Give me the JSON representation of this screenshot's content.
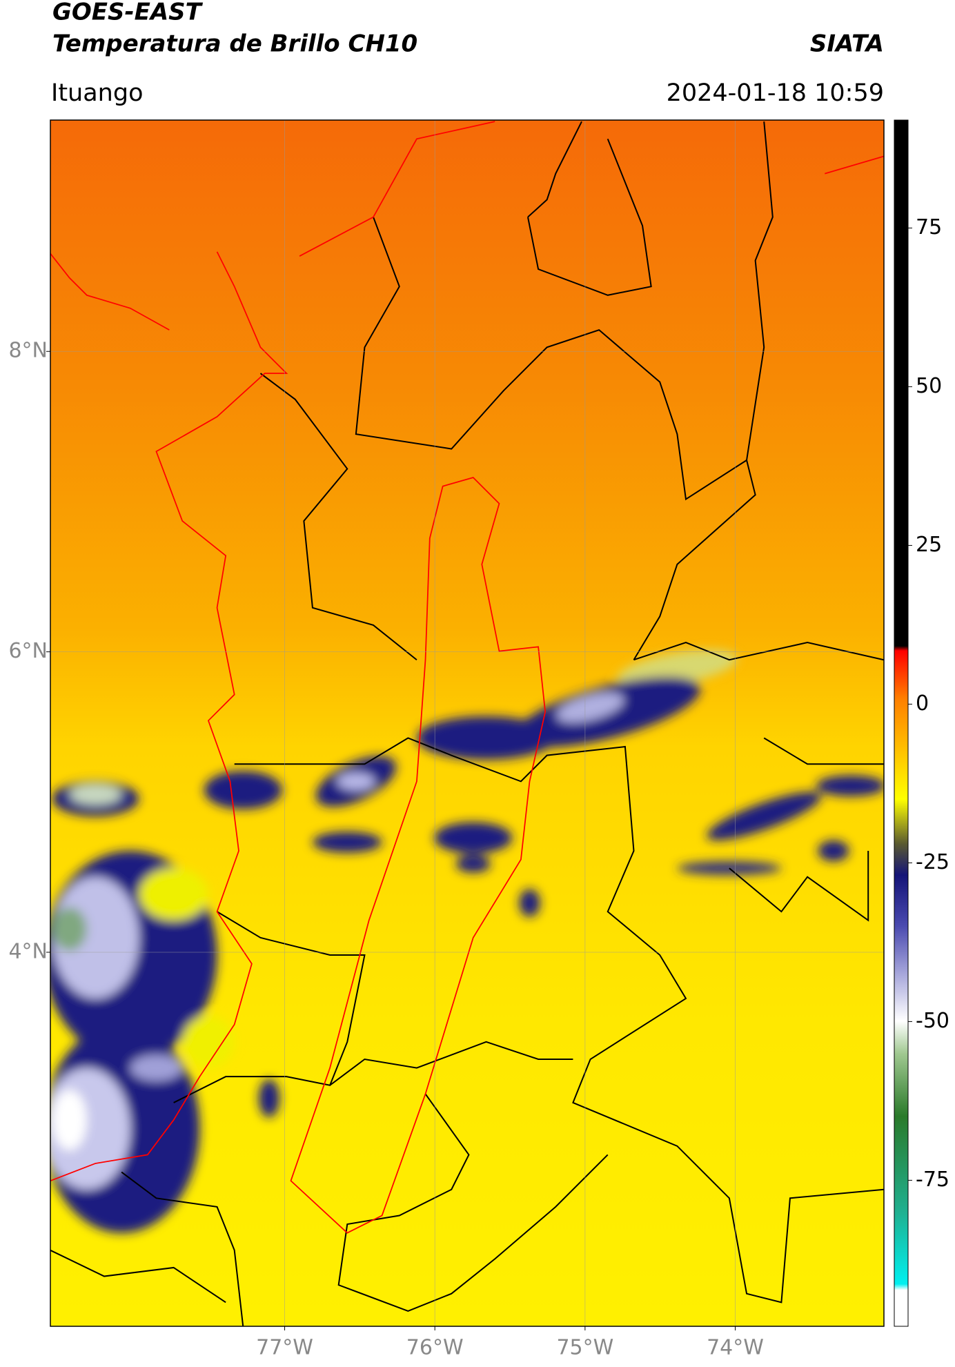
{
  "chart_data": {
    "type": "map",
    "title": "GOES-EAST",
    "subtitle": "Temperatura de Brillo CH10",
    "source": "SIATA",
    "region": "Ituango",
    "timestamp": "2024-01-18 10:59",
    "xlim": [
      -78.56,
      -73.01
    ],
    "ylim": [
      1.51,
      9.54
    ],
    "xticks": [
      {
        "value": -77,
        "label": "77°W"
      },
      {
        "value": -76,
        "label": "76°W"
      },
      {
        "value": -75,
        "label": "75°W"
      },
      {
        "value": -74,
        "label": "74°W"
      }
    ],
    "yticks": [
      {
        "value": 8,
        "label": "8°N"
      },
      {
        "value": 6,
        "label": "6°N"
      },
      {
        "value": 4,
        "label": "4°N"
      }
    ],
    "grid": true,
    "colorbar": {
      "lim": [
        -98,
        92
      ],
      "ticks": [
        75,
        50,
        25,
        0,
        -25,
        -50,
        -75
      ]
    }
  }
}
